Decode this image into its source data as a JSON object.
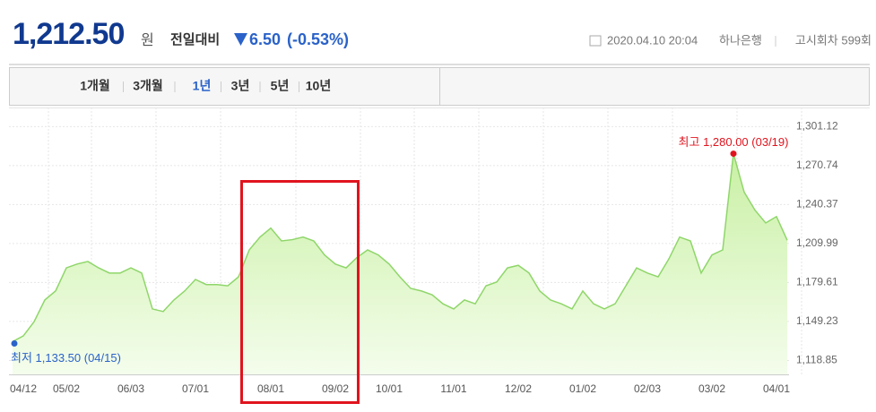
{
  "header": {
    "price": "1,212.50",
    "unit": "원",
    "change_label": "전일대비",
    "change": "6.50",
    "change_pct": "(-0.53%)",
    "datetime": "2020.04.10 20:04",
    "bank": "하나은행",
    "round": "고시회차 599회"
  },
  "tabs": {
    "items": [
      "1개월",
      "3개월",
      "1년",
      "3년",
      "5년",
      "10년"
    ],
    "selected": "1년"
  },
  "chart_data": {
    "type": "area",
    "categories": [
      null,
      "04/12",
      null,
      null,
      null,
      "05/02",
      null,
      null,
      null,
      null,
      null,
      "06/03",
      null,
      null,
      null,
      null,
      null,
      "07/01",
      null,
      null,
      null,
      null,
      null,
      null,
      "08/01",
      null,
      null,
      null,
      null,
      null,
      "09/02",
      null,
      null,
      null,
      null,
      "10/01",
      null,
      null,
      null,
      null,
      null,
      "11/01",
      null,
      null,
      null,
      null,
      null,
      "12/02",
      null,
      null,
      null,
      null,
      null,
      "01/02",
      null,
      null,
      null,
      null,
      null,
      "02/03",
      null,
      null,
      null,
      null,
      null,
      "03/02",
      null,
      null,
      null,
      null,
      null,
      "04/01",
      null
    ],
    "series": [
      {
        "color": "#8fd66a",
        "values": [
          1133.5,
          1138,
          1149,
          1166,
          1173,
          1191,
          1194,
          1196,
          1191,
          1187,
          1187,
          1191,
          1187,
          1159,
          1157,
          1166,
          1173,
          1182,
          1178,
          1178,
          1177,
          1184,
          1205,
          1215,
          1222,
          1212,
          1213,
          1215,
          1212,
          1201,
          1194,
          1191,
          1199,
          1205,
          1201,
          1194,
          1184,
          1175,
          1173,
          1170,
          1163,
          1159,
          1166,
          1163,
          1177,
          1180,
          1191,
          1193,
          1187,
          1173,
          1166,
          1163,
          1159,
          1173,
          1163,
          1159,
          1163,
          1177,
          1191,
          1187,
          1184,
          1198,
          1215,
          1212,
          1187,
          1201,
          1205,
          1280,
          1250,
          1236,
          1226,
          1231,
          1212.5
        ]
      }
    ],
    "ylim": [
      1108,
      1316
    ],
    "yticks": [
      {
        "value": 1301.12,
        "label": "1,301.12"
      },
      {
        "value": 1270.74,
        "label": "1,270.74"
      },
      {
        "value": 1240.37,
        "label": "1,240.37"
      },
      {
        "value": 1209.99,
        "label": "1,209.99"
      },
      {
        "value": 1179.61,
        "label": "1,179.61"
      },
      {
        "value": 1149.23,
        "label": "1,149.23"
      },
      {
        "value": 1118.85,
        "label": "1,118.85"
      }
    ],
    "grid": true,
    "annotations": [
      {
        "text": "최고 1,280.00 (03/19)",
        "color": "#e0141e"
      },
      {
        "text": "최저 1,133.50 (04/15)",
        "color": "#2a62c9"
      }
    ]
  }
}
